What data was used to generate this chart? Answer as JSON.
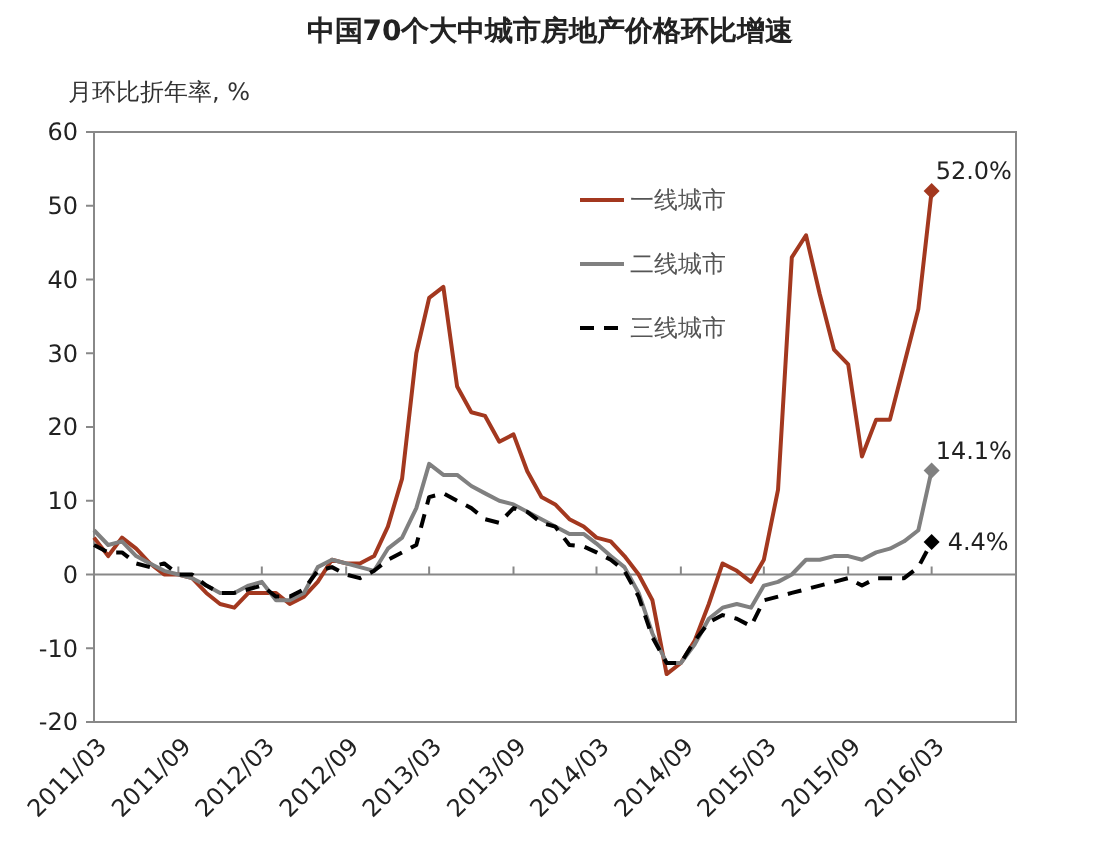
{
  "chart_data": {
    "type": "line",
    "title": "中国70个大中城市房地产价格环比增速",
    "ylabel": "月环比折年率, %",
    "x": [
      "2011-03",
      "2011-04",
      "2011-05",
      "2011-06",
      "2011-07",
      "2011-08",
      "2011-09",
      "2011-10",
      "2011-11",
      "2011-12",
      "2012-01",
      "2012-02",
      "2012-03",
      "2012-04",
      "2012-05",
      "2012-06",
      "2012-07",
      "2012-08",
      "2012-09",
      "2012-10",
      "2012-11",
      "2012-12",
      "2013-01",
      "2013-02",
      "2013-03",
      "2013-04",
      "2013-05",
      "2013-06",
      "2013-07",
      "2013-08",
      "2013-09",
      "2013-10",
      "2013-11",
      "2013-12",
      "2014-01",
      "2014-02",
      "2014-03",
      "2014-04",
      "2014-05",
      "2014-06",
      "2014-07",
      "2014-08",
      "2014-09",
      "2014-10",
      "2014-11",
      "2014-12",
      "2015-01",
      "2015-02",
      "2015-03",
      "2015-04",
      "2015-05",
      "2015-06",
      "2015-07",
      "2015-08",
      "2015-09",
      "2015-10",
      "2015-11",
      "2015-12",
      "2016-01",
      "2016-02",
      "2016-03"
    ],
    "xlim": [
      "2011-03",
      "2016-09"
    ],
    "xticks": [
      {
        "value": "2011-03",
        "label": "2011/03"
      },
      {
        "value": "2011-09",
        "label": "2011/09"
      },
      {
        "value": "2012-03",
        "label": "2012/03"
      },
      {
        "value": "2012-09",
        "label": "2012/09"
      },
      {
        "value": "2013-03",
        "label": "2013/03"
      },
      {
        "value": "2013-09",
        "label": "2013/09"
      },
      {
        "value": "2014-03",
        "label": "2014/03"
      },
      {
        "value": "2014-09",
        "label": "2014/09"
      },
      {
        "value": "2015-03",
        "label": "2015/03"
      },
      {
        "value": "2015-09",
        "label": "2015/09"
      },
      {
        "value": "2016-03",
        "label": "2016/03"
      }
    ],
    "ylim": [
      -20,
      60
    ],
    "yticks": [
      -20,
      -10,
      0,
      10,
      20,
      30,
      40,
      50,
      60
    ],
    "legend": "top right",
    "series": [
      {
        "name": "一线城市",
        "color": "#a3381f",
        "line_style": "solid",
        "values": [
          5,
          2.5,
          5,
          3.5,
          1.5,
          0,
          0,
          -0.5,
          -2.5,
          -4,
          -4.5,
          -2.5,
          -2.5,
          -2.5,
          -4,
          -3,
          -1,
          2,
          1.5,
          1.5,
          2.5,
          6.5,
          13,
          30,
          37.5,
          39,
          25.5,
          22,
          21.5,
          18,
          19,
          14,
          10.5,
          9.5,
          7.5,
          6.5,
          5,
          4.5,
          2.5,
          0,
          -3.5,
          -13.5,
          -12,
          -9,
          -4,
          1.5,
          0.5,
          -1,
          2,
          11.5,
          43,
          46,
          38,
          30.5,
          28.5,
          16,
          21,
          21,
          28.5,
          36,
          52
        ],
        "value_labels": [
          null,
          null,
          null,
          null,
          null,
          null,
          null,
          null,
          null,
          null,
          null,
          null,
          null,
          null,
          null,
          null,
          null,
          null,
          null,
          null,
          null,
          null,
          null,
          null,
          null,
          null,
          null,
          null,
          null,
          null,
          null,
          null,
          null,
          null,
          null,
          null,
          null,
          null,
          null,
          null,
          null,
          null,
          null,
          null,
          null,
          null,
          null,
          null,
          null,
          null,
          null,
          null,
          null,
          null,
          null,
          null,
          null,
          null,
          null,
          null,
          "52.0%"
        ]
      },
      {
        "name": "二线城市",
        "color": "#808080",
        "line_style": "solid",
        "values": [
          6,
          4,
          4.5,
          2.5,
          1.5,
          0.5,
          0,
          -0.5,
          -1.5,
          -2.5,
          -2.5,
          -1.5,
          -1,
          -3.5,
          -3.5,
          -2.5,
          1,
          2,
          1.5,
          1,
          0.5,
          3.5,
          5,
          9,
          15,
          13.5,
          13.5,
          12,
          11,
          10,
          9.5,
          8.5,
          7.5,
          6.5,
          5.5,
          5.5,
          4.2,
          2.5,
          1,
          -2.5,
          -8,
          -12,
          -12,
          -9.5,
          -6,
          -4.5,
          -4,
          -4.5,
          -1.5,
          -1,
          0,
          2,
          2,
          2.5,
          2.5,
          2,
          3,
          3.5,
          4.5,
          6,
          14.1
        ],
        "value_labels": [
          null,
          null,
          null,
          null,
          null,
          null,
          null,
          null,
          null,
          null,
          null,
          null,
          null,
          null,
          null,
          null,
          null,
          null,
          null,
          null,
          null,
          null,
          null,
          null,
          null,
          null,
          null,
          null,
          null,
          null,
          null,
          null,
          null,
          null,
          null,
          null,
          null,
          null,
          null,
          null,
          null,
          null,
          null,
          null,
          null,
          null,
          null,
          null,
          null,
          null,
          null,
          null,
          null,
          null,
          null,
          null,
          null,
          null,
          null,
          null,
          "14.1%"
        ]
      },
      {
        "name": "三线城市",
        "color": "#000000",
        "line_style": "dashed",
        "values": [
          4,
          3,
          3,
          1.5,
          1,
          1.5,
          0,
          0,
          -1.5,
          -2.5,
          -2.5,
          -2,
          -1.5,
          -3,
          -3,
          -2,
          0.5,
          1,
          0,
          -0.5,
          0.5,
          2,
          3,
          4,
          10.5,
          11,
          10,
          9,
          7.5,
          7,
          9,
          8.5,
          7,
          6.5,
          4,
          3.8,
          3,
          2,
          0.5,
          -3,
          -8.5,
          -12,
          -12,
          -9,
          -6.5,
          -5.5,
          -6,
          -7,
          -3.5,
          -3,
          -2.5,
          -2,
          -1.5,
          -1,
          -0.5,
          -1.5,
          -0.5,
          -0.5,
          -0.5,
          1,
          4.4
        ],
        "value_labels": [
          null,
          null,
          null,
          null,
          null,
          null,
          null,
          null,
          null,
          null,
          null,
          null,
          null,
          null,
          null,
          null,
          null,
          null,
          null,
          null,
          null,
          null,
          null,
          null,
          null,
          null,
          null,
          null,
          null,
          null,
          null,
          null,
          null,
          null,
          null,
          null,
          null,
          null,
          null,
          null,
          null,
          null,
          null,
          null,
          null,
          null,
          null,
          null,
          null,
          null,
          null,
          null,
          null,
          null,
          null,
          null,
          null,
          null,
          null,
          null,
          "4.4%"
        ]
      }
    ]
  }
}
